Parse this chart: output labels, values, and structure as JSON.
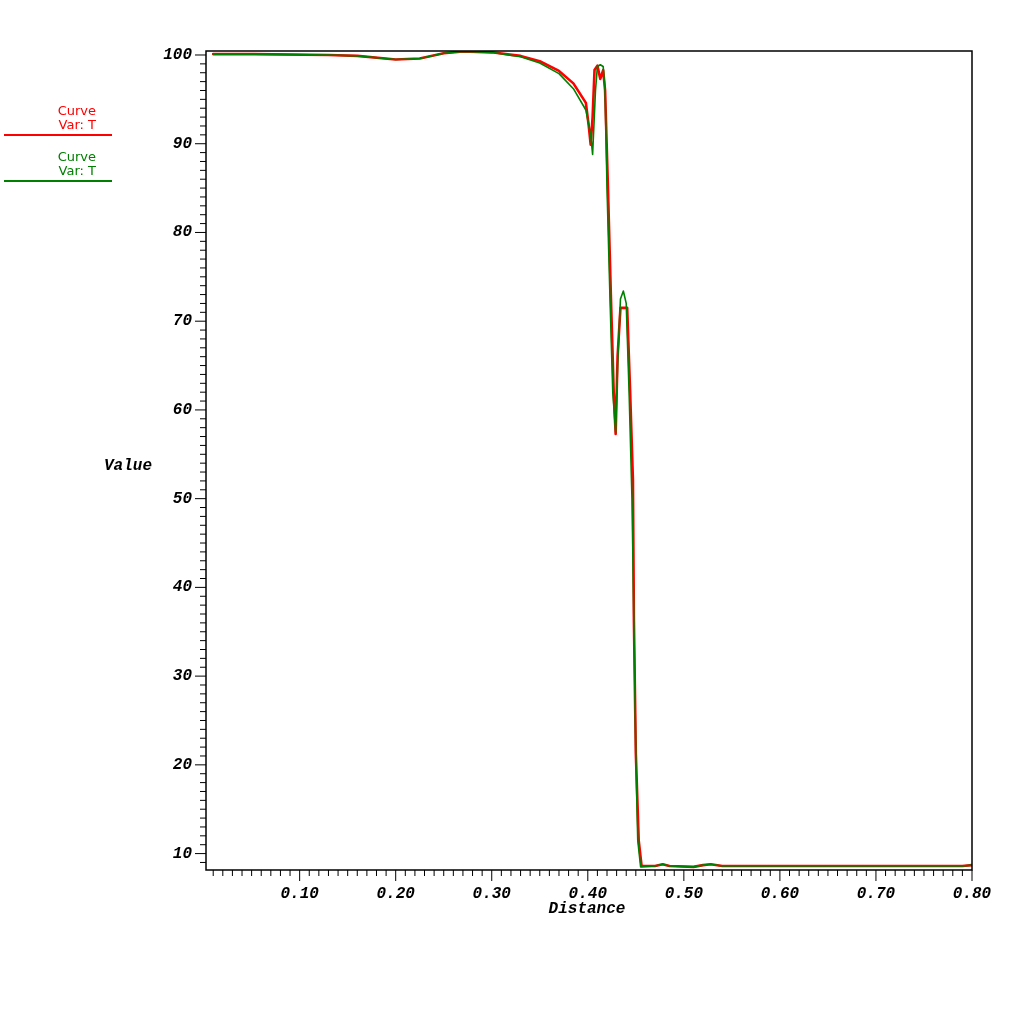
{
  "chart_data": {
    "type": "line",
    "xlabel": "Distance",
    "ylabel": "Value",
    "legend": "left",
    "xlim": [
      0.0025,
      0.8
    ],
    "ylim": [
      8.15,
      100.45
    ],
    "xticks": [
      {
        "value": 0.01,
        "label": null
      },
      {
        "value": 0.02,
        "label": null
      },
      {
        "value": 0.03,
        "label": null
      },
      {
        "value": 0.04,
        "label": null
      },
      {
        "value": 0.05,
        "label": null
      },
      {
        "value": 0.06,
        "label": null
      },
      {
        "value": 0.07,
        "label": null
      },
      {
        "value": 0.08,
        "label": null
      },
      {
        "value": 0.09,
        "label": null
      },
      {
        "value": 0.1,
        "label": "0.10"
      },
      {
        "value": 0.11,
        "label": null
      },
      {
        "value": 0.12,
        "label": null
      },
      {
        "value": 0.13,
        "label": null
      },
      {
        "value": 0.14,
        "label": null
      },
      {
        "value": 0.15,
        "label": null
      },
      {
        "value": 0.16,
        "label": null
      },
      {
        "value": 0.17,
        "label": null
      },
      {
        "value": 0.18,
        "label": null
      },
      {
        "value": 0.19,
        "label": null
      },
      {
        "value": 0.2,
        "label": "0.20"
      },
      {
        "value": 0.21,
        "label": null
      },
      {
        "value": 0.22,
        "label": null
      },
      {
        "value": 0.23,
        "label": null
      },
      {
        "value": 0.24,
        "label": null
      },
      {
        "value": 0.25,
        "label": null
      },
      {
        "value": 0.26,
        "label": null
      },
      {
        "value": 0.27,
        "label": null
      },
      {
        "value": 0.28,
        "label": null
      },
      {
        "value": 0.29,
        "label": null
      },
      {
        "value": 0.3,
        "label": "0.30"
      },
      {
        "value": 0.31,
        "label": null
      },
      {
        "value": 0.32,
        "label": null
      },
      {
        "value": 0.33,
        "label": null
      },
      {
        "value": 0.34,
        "label": null
      },
      {
        "value": 0.35,
        "label": null
      },
      {
        "value": 0.36,
        "label": null
      },
      {
        "value": 0.37,
        "label": null
      },
      {
        "value": 0.38,
        "label": null
      },
      {
        "value": 0.39,
        "label": null
      },
      {
        "value": 0.4,
        "label": "0.40"
      },
      {
        "value": 0.41,
        "label": null
      },
      {
        "value": 0.42,
        "label": null
      },
      {
        "value": 0.43,
        "label": null
      },
      {
        "value": 0.44,
        "label": null
      },
      {
        "value": 0.45,
        "label": null
      },
      {
        "value": 0.46,
        "label": null
      },
      {
        "value": 0.47,
        "label": null
      },
      {
        "value": 0.48,
        "label": null
      },
      {
        "value": 0.49,
        "label": null
      },
      {
        "value": 0.5,
        "label": "0.50"
      },
      {
        "value": 0.51,
        "label": null
      },
      {
        "value": 0.52,
        "label": null
      },
      {
        "value": 0.53,
        "label": null
      },
      {
        "value": 0.54,
        "label": null
      },
      {
        "value": 0.55,
        "label": null
      },
      {
        "value": 0.56,
        "label": null
      },
      {
        "value": 0.57,
        "label": null
      },
      {
        "value": 0.58,
        "label": null
      },
      {
        "value": 0.59,
        "label": null
      },
      {
        "value": 0.6,
        "label": "0.60"
      },
      {
        "value": 0.61,
        "label": null
      },
      {
        "value": 0.62,
        "label": null
      },
      {
        "value": 0.63,
        "label": null
      },
      {
        "value": 0.64,
        "label": null
      },
      {
        "value": 0.65,
        "label": null
      },
      {
        "value": 0.66,
        "label": null
      },
      {
        "value": 0.67,
        "label": null
      },
      {
        "value": 0.68,
        "label": null
      },
      {
        "value": 0.69,
        "label": null
      },
      {
        "value": 0.7,
        "label": "0.70"
      },
      {
        "value": 0.71,
        "label": null
      },
      {
        "value": 0.72,
        "label": null
      },
      {
        "value": 0.73,
        "label": null
      },
      {
        "value": 0.74,
        "label": null
      },
      {
        "value": 0.75,
        "label": null
      },
      {
        "value": 0.76,
        "label": null
      },
      {
        "value": 0.77,
        "label": null
      },
      {
        "value": 0.78,
        "label": null
      },
      {
        "value": 0.79,
        "label": null
      },
      {
        "value": 0.8,
        "label": "0.80"
      }
    ],
    "yticks": [
      {
        "value": 9,
        "label": null
      },
      10,
      {
        "value": 11,
        "label": null
      },
      {
        "value": 12,
        "label": null
      },
      {
        "value": 13,
        "label": null
      },
      {
        "value": 14,
        "label": null
      },
      {
        "value": 15,
        "label": null
      },
      {
        "value": 16,
        "label": null
      },
      {
        "value": 17,
        "label": null
      },
      {
        "value": 18,
        "label": null
      },
      {
        "value": 19,
        "label": null
      },
      20,
      {
        "value": 21,
        "label": null
      },
      {
        "value": 22,
        "label": null
      },
      {
        "value": 23,
        "label": null
      },
      {
        "value": 24,
        "label": null
      },
      {
        "value": 25,
        "label": null
      },
      {
        "value": 26,
        "label": null
      },
      {
        "value": 27,
        "label": null
      },
      {
        "value": 28,
        "label": null
      },
      {
        "value": 29,
        "label": null
      },
      30,
      {
        "value": 31,
        "label": null
      },
      {
        "value": 32,
        "label": null
      },
      {
        "value": 33,
        "label": null
      },
      {
        "value": 34,
        "label": null
      },
      {
        "value": 35,
        "label": null
      },
      {
        "value": 36,
        "label": null
      },
      {
        "value": 37,
        "label": null
      },
      {
        "value": 38,
        "label": null
      },
      {
        "value": 39,
        "label": null
      },
      40,
      {
        "value": 41,
        "label": null
      },
      {
        "value": 42,
        "label": null
      },
      {
        "value": 43,
        "label": null
      },
      {
        "value": 44,
        "label": null
      },
      {
        "value": 45,
        "label": null
      },
      {
        "value": 46,
        "label": null
      },
      {
        "value": 47,
        "label": null
      },
      {
        "value": 48,
        "label": null
      },
      {
        "value": 49,
        "label": null
      },
      50,
      {
        "value": 51,
        "label": null
      },
      {
        "value": 52,
        "label": null
      },
      {
        "value": 53,
        "label": null
      },
      {
        "value": 54,
        "label": null
      },
      {
        "value": 55,
        "label": null
      },
      {
        "value": 56,
        "label": null
      },
      {
        "value": 57,
        "label": null
      },
      {
        "value": 58,
        "label": null
      },
      {
        "value": 59,
        "label": null
      },
      60,
      {
        "value": 61,
        "label": null
      },
      {
        "value": 62,
        "label": null
      },
      {
        "value": 63,
        "label": null
      },
      {
        "value": 64,
        "label": null
      },
      {
        "value": 65,
        "label": null
      },
      {
        "value": 66,
        "label": null
      },
      {
        "value": 67,
        "label": null
      },
      {
        "value": 68,
        "label": null
      },
      {
        "value": 69,
        "label": null
      },
      70,
      {
        "value": 71,
        "label": null
      },
      {
        "value": 72,
        "label": null
      },
      {
        "value": 73,
        "label": null
      },
      {
        "value": 74,
        "label": null
      },
      {
        "value": 75,
        "label": null
      },
      {
        "value": 76,
        "label": null
      },
      {
        "value": 77,
        "label": null
      },
      {
        "value": 78,
        "label": null
      },
      {
        "value": 79,
        "label": null
      },
      80,
      {
        "value": 81,
        "label": null
      },
      {
        "value": 82,
        "label": null
      },
      {
        "value": 83,
        "label": null
      },
      {
        "value": 84,
        "label": null
      },
      {
        "value": 85,
        "label": null
      },
      {
        "value": 86,
        "label": null
      },
      {
        "value": 87,
        "label": null
      },
      {
        "value": 88,
        "label": null
      },
      {
        "value": 89,
        "label": null
      },
      90,
      {
        "value": 91,
        "label": null
      },
      {
        "value": 92,
        "label": null
      },
      {
        "value": 93,
        "label": null
      },
      {
        "value": 94,
        "label": null
      },
      {
        "value": 95,
        "label": null
      },
      {
        "value": 96,
        "label": null
      },
      {
        "value": 97,
        "label": null
      },
      {
        "value": 98,
        "label": null
      },
      {
        "value": 99,
        "label": null
      },
      100
    ],
    "series": [
      {
        "name": "Curve\nVar: T",
        "color": "#ff0000",
        "x": [
          0.01,
          0.05,
          0.13,
          0.16,
          0.2,
          0.225,
          0.25,
          0.27,
          0.3,
          0.33,
          0.35,
          0.37,
          0.385,
          0.398,
          0.401,
          0.403,
          0.405,
          0.407,
          0.41,
          0.413,
          0.416,
          0.418,
          0.421,
          0.424,
          0.427,
          0.429,
          0.431,
          0.434,
          0.441,
          0.444,
          0.447,
          0.448,
          0.45,
          0.453,
          0.456,
          0.47,
          0.478,
          0.485,
          0.51,
          0.52,
          0.528,
          0.54,
          0.79,
          0.8
        ],
        "values": [
          100.1,
          100.1,
          100.0,
          99.9,
          99.5,
          99.6,
          100.2,
          100.4,
          100.3,
          99.9,
          99.3,
          98.2,
          96.8,
          94.6,
          92,
          89.9,
          93,
          98.3,
          98.8,
          97.3,
          98.3,
          96,
          85,
          73,
          62,
          57.3,
          66,
          71.5,
          71.5,
          62.3,
          52.1,
          36.3,
          21.3,
          11.5,
          8.6,
          8.6,
          8.8,
          8.6,
          8.5,
          8.7,
          8.8,
          8.6,
          8.6,
          8.7
        ]
      },
      {
        "name": "Curve\nVar: T",
        "color": "#008000",
        "x": [
          0.01,
          0.05,
          0.13,
          0.16,
          0.2,
          0.225,
          0.25,
          0.27,
          0.3,
          0.33,
          0.35,
          0.37,
          0.385,
          0.398,
          0.403,
          0.405,
          0.408,
          0.41,
          0.413,
          0.416,
          0.418,
          0.42,
          0.423,
          0.426,
          0.429,
          0.431,
          0.434,
          0.437,
          0.44,
          0.443,
          0.446,
          0.448,
          0.45,
          0.452,
          0.455,
          0.47,
          0.478,
          0.485,
          0.51,
          0.52,
          0.528,
          0.54,
          0.79,
          0.8
        ],
        "values": [
          100.1,
          100.1,
          100.0,
          99.9,
          99.5,
          99.6,
          100.2,
          100.4,
          100.3,
          99.8,
          99.1,
          97.9,
          96.2,
          93.8,
          91,
          88.8,
          96,
          98.7,
          98.9,
          98.7,
          96,
          85,
          73,
          62,
          57.5,
          65,
          72.5,
          73.4,
          72,
          62,
          50,
          36,
          21,
          11.5,
          8.5,
          8.6,
          8.8,
          8.6,
          8.5,
          8.7,
          8.8,
          8.6,
          8.6,
          8.7
        ]
      }
    ]
  }
}
